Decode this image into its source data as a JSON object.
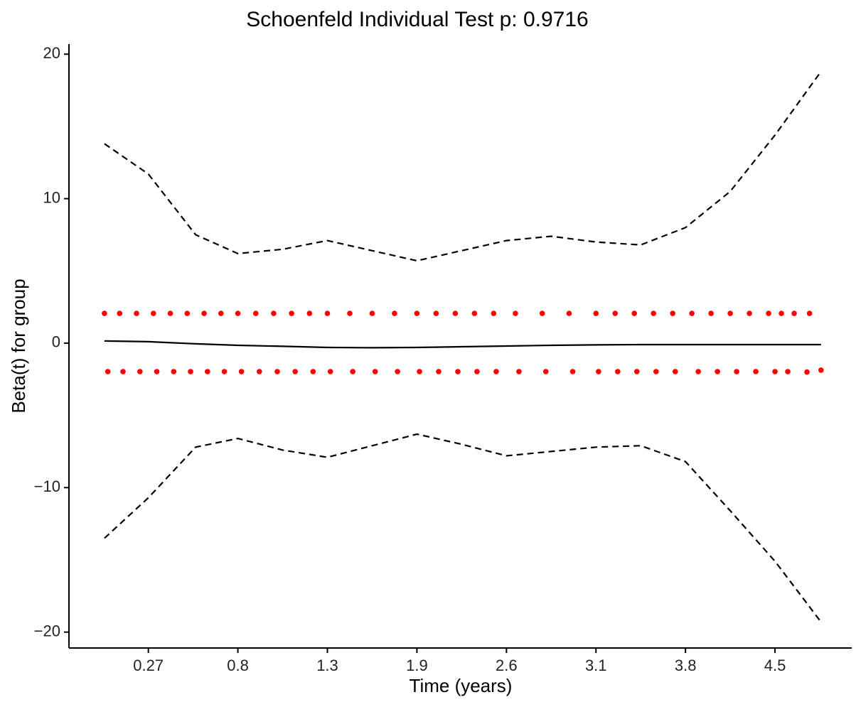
{
  "chart_data": {
    "type": "scatter",
    "title": "Schoenfeld Individual Test p: 0.9716",
    "xlabel": "Time (years)",
    "ylabel": "Beta(t) for group",
    "xlim": [
      -0.2,
      5.1
    ],
    "xticks": [
      0.27,
      0.8,
      1.3,
      1.9,
      2.6,
      3.1,
      3.8,
      4.5
    ],
    "ylim": [
      -21.1,
      20.7
    ],
    "yticks": [
      {
        "value": -20,
        "label": "−20"
      },
      {
        "value": -10,
        "label": "−10"
      },
      0,
      10,
      20
    ],
    "grid": false,
    "series": [
      {
        "type": "scatter",
        "color": "#ff0000",
        "x": [
          0.01,
          0.1,
          0.2,
          0.3,
          0.4,
          0.5,
          0.6,
          0.7,
          0.8,
          0.9,
          1.0,
          1.1,
          1.2,
          1.3,
          1.45,
          1.6,
          1.75,
          1.9,
          2.05,
          2.2,
          2.35,
          2.5,
          2.65,
          2.8,
          2.95,
          3.1,
          3.25,
          3.4,
          3.55,
          3.7,
          3.85,
          4.0,
          4.15,
          4.3,
          4.45,
          4.55,
          4.65,
          4.77
        ],
        "values": [
          2.06,
          2.06,
          2.06,
          2.06,
          2.06,
          2.06,
          2.06,
          2.06,
          2.06,
          2.06,
          2.06,
          2.06,
          2.06,
          2.06,
          2.06,
          2.06,
          2.06,
          2.06,
          2.06,
          2.06,
          2.06,
          2.06,
          2.06,
          2.06,
          2.06,
          2.06,
          2.06,
          2.06,
          2.06,
          2.06,
          2.06,
          2.06,
          2.06,
          2.06,
          2.06,
          2.06,
          2.06,
          2.06
        ]
      },
      {
        "type": "scatter",
        "color": "#ff0000",
        "x": [
          0.03,
          0.12,
          0.22,
          0.32,
          0.42,
          0.52,
          0.62,
          0.72,
          0.82,
          0.92,
          1.02,
          1.12,
          1.22,
          1.32,
          1.47,
          1.62,
          1.77,
          1.92,
          2.07,
          2.22,
          2.37,
          2.52,
          2.67,
          2.82,
          2.97,
          3.12,
          3.27,
          3.42,
          3.57,
          3.72,
          3.9,
          4.05,
          4.2,
          4.35,
          4.5,
          4.6,
          4.75,
          4.86
        ],
        "values": [
          -1.97,
          -1.97,
          -1.97,
          -1.97,
          -1.97,
          -1.97,
          -1.97,
          -1.97,
          -1.97,
          -1.97,
          -1.97,
          -1.97,
          -1.97,
          -1.97,
          -1.97,
          -1.97,
          -1.97,
          -1.97,
          -1.97,
          -1.97,
          -1.97,
          -1.97,
          -1.97,
          -1.97,
          -1.97,
          -1.97,
          -1.97,
          -1.97,
          -1.97,
          -1.97,
          -1.97,
          -1.97,
          -1.97,
          -1.97,
          -1.97,
          -1.97,
          -2.0,
          -1.87
        ]
      },
      {
        "type": "line",
        "color": "#000000",
        "dashed": false,
        "x": [
          0.01,
          0.27,
          0.55,
          0.8,
          1.05,
          1.3,
          1.6,
          1.9,
          2.25,
          2.6,
          2.85,
          3.1,
          3.45,
          3.8,
          4.15,
          4.5,
          4.86
        ],
        "values": [
          0.15,
          0.1,
          -0.05,
          -0.15,
          -0.22,
          -0.3,
          -0.32,
          -0.3,
          -0.25,
          -0.2,
          -0.15,
          -0.12,
          -0.1,
          -0.1,
          -0.1,
          -0.1,
          -0.1
        ]
      },
      {
        "type": "line",
        "color": "#000000",
        "dashed": true,
        "x": [
          0.01,
          0.27,
          0.55,
          0.8,
          1.05,
          1.3,
          1.6,
          1.9,
          2.25,
          2.6,
          2.85,
          3.1,
          3.45,
          3.8,
          4.15,
          4.5,
          4.86
        ],
        "values": [
          13.8,
          11.7,
          7.5,
          6.2,
          6.5,
          7.1,
          6.4,
          5.7,
          6.4,
          7.1,
          7.4,
          7.0,
          6.8,
          8.0,
          10.5,
          14.4,
          18.8
        ]
      },
      {
        "type": "line",
        "color": "#000000",
        "dashed": true,
        "x": [
          0.01,
          0.27,
          0.55,
          0.8,
          1.05,
          1.3,
          1.6,
          1.9,
          2.25,
          2.6,
          2.85,
          3.1,
          3.45,
          3.8,
          4.15,
          4.5,
          4.86
        ],
        "values": [
          -13.5,
          -10.7,
          -7.2,
          -6.6,
          -7.4,
          -7.9,
          -7.1,
          -6.3,
          -7.0,
          -7.8,
          -7.5,
          -7.2,
          -7.1,
          -8.2,
          -11.6,
          -15.1,
          -19.3
        ]
      }
    ]
  }
}
